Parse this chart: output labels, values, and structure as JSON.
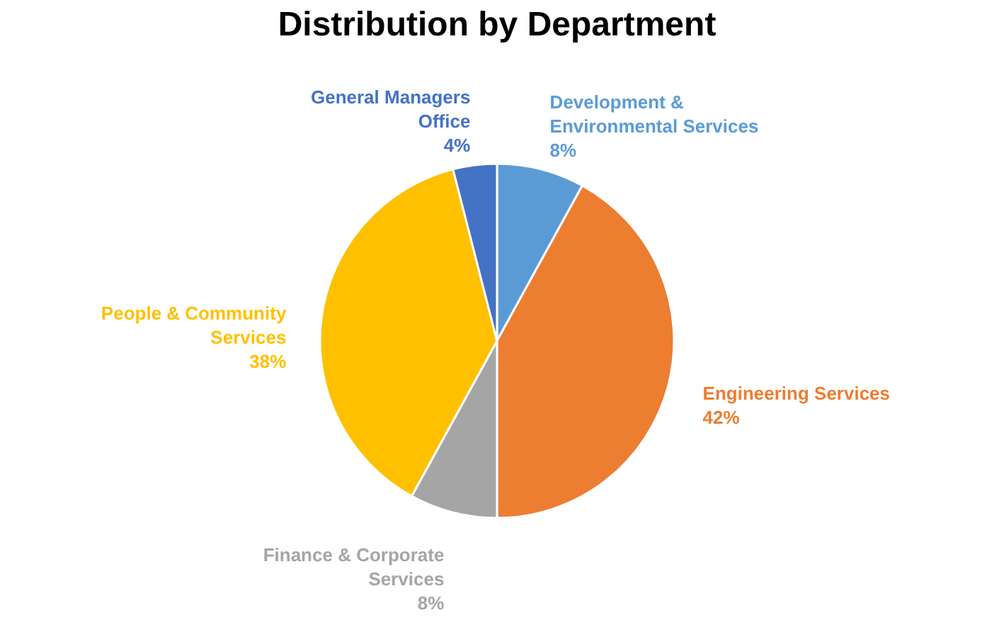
{
  "chart_data": {
    "type": "pie",
    "title": "Distribution by Department",
    "categories": [
      "Development & Environmental Services",
      "Engineering Services",
      "Finance & Corporate Services",
      "People & Community Services",
      "General Managers Office"
    ],
    "values": [
      8,
      42,
      8,
      38,
      4
    ],
    "value_labels": [
      "8%",
      "42%",
      "8%",
      "38%",
      "4%"
    ],
    "colors": [
      "#5b9bd5",
      "#ed7d31",
      "#a5a5a5",
      "#ffc000",
      "#4472c4"
    ],
    "legend": false
  }
}
